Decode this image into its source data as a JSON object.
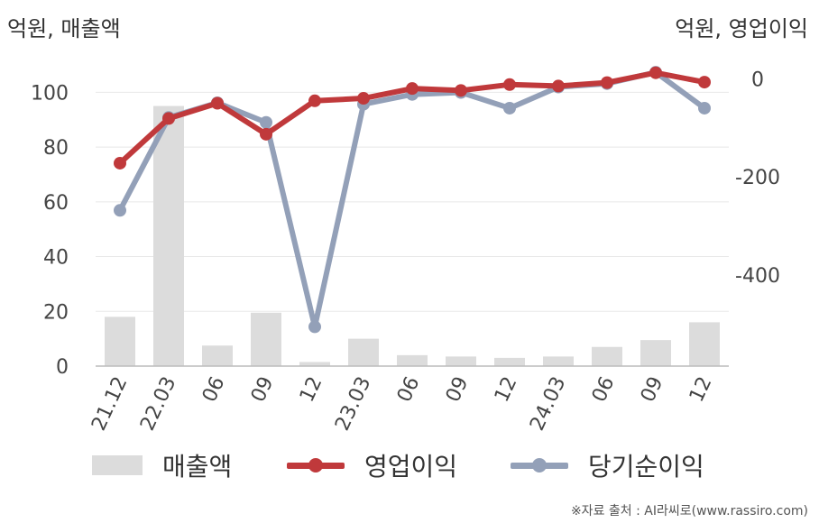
{
  "header": {
    "left_unit": "억원, 매출액",
    "right_unit": "억원, 영업이익"
  },
  "footer": {
    "source": "※자료 출처 : AI라씨로(www.rassiro.com)"
  },
  "colors": {
    "bar": "#dcdcdc",
    "op_profit": "#c0393b",
    "net_profit": "#93a0b8",
    "gridline": "#e8e8e8",
    "axis": "#bbbbbb"
  },
  "chart_data": {
    "type": "bar+line",
    "categories": [
      "21.12",
      "22.03",
      "06",
      "09",
      "12",
      "23.03",
      "06",
      "09",
      "12",
      "24.03",
      "06",
      "09",
      "12"
    ],
    "left_axis": {
      "ylim": [
        0,
        110
      ],
      "ticks": [
        0,
        20,
        40,
        60,
        80,
        100
      ]
    },
    "right_axis": {
      "ylim": [
        -585,
        28
      ],
      "ticks": [
        0,
        -200,
        -400
      ]
    },
    "series": [
      {
        "name": "매출액",
        "kind": "bar",
        "axis": "left",
        "values": [
          18,
          95,
          7.5,
          19.5,
          1.5,
          10,
          4,
          3.5,
          3,
          3.5,
          7,
          9.5,
          16
        ]
      },
      {
        "name": "영업이익",
        "kind": "line",
        "axis": "right",
        "values": [
          -172,
          -81,
          -50,
          -113,
          -45,
          -40,
          -20,
          -24,
          -12,
          -15,
          -8,
          12,
          -7
        ]
      },
      {
        "name": "당기순이익",
        "kind": "line",
        "axis": "right",
        "values": [
          -268,
          -79,
          -49,
          -89,
          -505,
          -52,
          -32,
          -28,
          -60,
          -17,
          -10,
          13,
          -60
        ]
      }
    ],
    "grid": true,
    "legend_position": "bottom"
  }
}
